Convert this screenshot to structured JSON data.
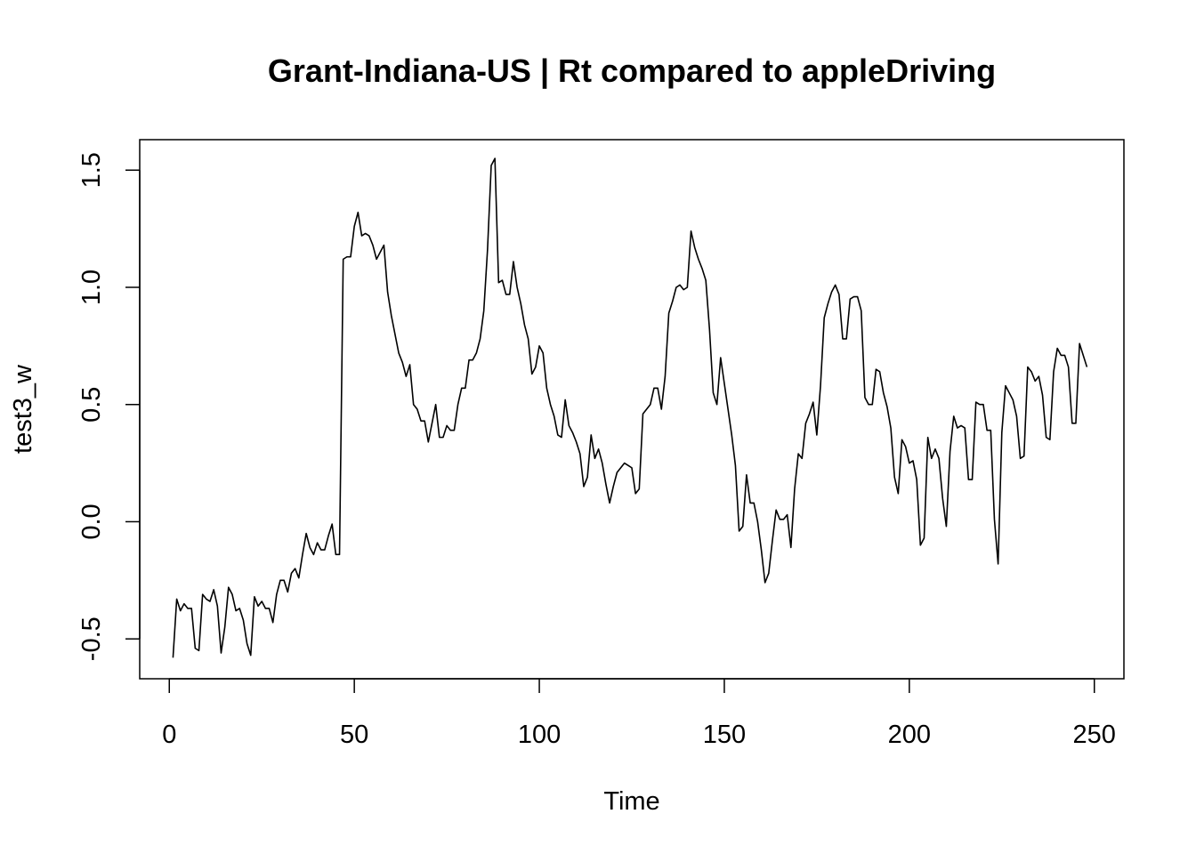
{
  "chart_data": {
    "type": "line",
    "title": "Grant-Indiana-US | Rt compared to appleDriving",
    "xlabel": "Time",
    "ylabel": "test3_w",
    "xlim": [
      -8,
      258
    ],
    "ylim": [
      -0.67,
      1.63
    ],
    "xticks": [
      0,
      50,
      100,
      150,
      200,
      250
    ],
    "yticks": [
      -0.5,
      0.0,
      0.5,
      1.0,
      1.5
    ],
    "xtick_labels": [
      "0",
      "50",
      "100",
      "150",
      "200",
      "250"
    ],
    "ytick_labels": [
      "-0.5",
      "0.0",
      "0.5",
      "1.0",
      "1.5"
    ],
    "grid": false,
    "line_color": "#000000",
    "series": [
      {
        "x": [
          1,
          2,
          3,
          4,
          5,
          6,
          7,
          8,
          9,
          10,
          11,
          12,
          13,
          14,
          15,
          16,
          17,
          18,
          19,
          20,
          21,
          22,
          23,
          24,
          25,
          26,
          27,
          28,
          29,
          30,
          31,
          32,
          33,
          34,
          35,
          36,
          37,
          38,
          39,
          40,
          41,
          42,
          43,
          44,
          45,
          46,
          47,
          48,
          49,
          50,
          51,
          52,
          53,
          54,
          55,
          56,
          57,
          58,
          59,
          60,
          61,
          62,
          63,
          64,
          65,
          66,
          67,
          68,
          69,
          70,
          71,
          72,
          73,
          74,
          75,
          76,
          77,
          78,
          79,
          80,
          81,
          82,
          83,
          84,
          85,
          86,
          87,
          88,
          89,
          90,
          91,
          92,
          93,
          94,
          95,
          96,
          97,
          98,
          99,
          100,
          101,
          102,
          103,
          104,
          105,
          106,
          107,
          108,
          109,
          110,
          111,
          112,
          113,
          114,
          115,
          116,
          117,
          118,
          119,
          120,
          121,
          122,
          123,
          124,
          125,
          126,
          127,
          128,
          129,
          130,
          131,
          132,
          133,
          134,
          135,
          136,
          137,
          138,
          139,
          140,
          141,
          142,
          143,
          144,
          145,
          146,
          147,
          148,
          149,
          150,
          151,
          152,
          153,
          154,
          155,
          156,
          157,
          158,
          159,
          160,
          161,
          162,
          163,
          164,
          165,
          166,
          167,
          168,
          169,
          170,
          171,
          172,
          173,
          174,
          175,
          176,
          177,
          178,
          179,
          180,
          181,
          182,
          183,
          184,
          185,
          186,
          187,
          188,
          189,
          190,
          191,
          192,
          193,
          194,
          195,
          196,
          197,
          198,
          199,
          200,
          201,
          202,
          203,
          204,
          205,
          206,
          207,
          208,
          209,
          210,
          211,
          212,
          213,
          214,
          215,
          216,
          217,
          218,
          219,
          220,
          221,
          222,
          223,
          224,
          225,
          226,
          227,
          228,
          229,
          230,
          231,
          232,
          233,
          234,
          235,
          236,
          237,
          238,
          239,
          240,
          241,
          242,
          243,
          244,
          245,
          246,
          247,
          248
        ],
        "values": [
          -0.58,
          -0.33,
          -0.38,
          -0.35,
          -0.37,
          -0.37,
          -0.54,
          -0.55,
          -0.31,
          -0.33,
          -0.34,
          -0.29,
          -0.36,
          -0.56,
          -0.45,
          -0.28,
          -0.31,
          -0.38,
          -0.37,
          -0.42,
          -0.52,
          -0.57,
          -0.32,
          -0.36,
          -0.34,
          -0.37,
          -0.37,
          -0.43,
          -0.31,
          -0.25,
          -0.25,
          -0.3,
          -0.22,
          -0.2,
          -0.24,
          -0.14,
          -0.05,
          -0.11,
          -0.14,
          -0.09,
          -0.12,
          -0.12,
          -0.06,
          -0.01,
          -0.14,
          -0.14,
          1.12,
          1.13,
          1.13,
          1.26,
          1.32,
          1.22,
          1.23,
          1.22,
          1.18,
          1.12,
          1.15,
          1.18,
          0.98,
          0.88,
          0.8,
          0.72,
          0.68,
          0.62,
          0.67,
          0.5,
          0.48,
          0.43,
          0.43,
          0.34,
          0.42,
          0.5,
          0.36,
          0.36,
          0.41,
          0.39,
          0.39,
          0.5,
          0.57,
          0.57,
          0.69,
          0.69,
          0.72,
          0.78,
          0.9,
          1.16,
          1.52,
          1.55,
          1.02,
          1.03,
          0.97,
          0.97,
          1.11,
          1.0,
          0.93,
          0.84,
          0.78,
          0.63,
          0.66,
          0.75,
          0.72,
          0.57,
          0.5,
          0.45,
          0.37,
          0.36,
          0.52,
          0.41,
          0.38,
          0.34,
          0.29,
          0.15,
          0.19,
          0.37,
          0.27,
          0.31,
          0.25,
          0.16,
          0.08,
          0.15,
          0.21,
          0.23,
          0.25,
          0.24,
          0.23,
          0.12,
          0.14,
          0.46,
          0.48,
          0.5,
          0.57,
          0.57,
          0.48,
          0.62,
          0.89,
          0.94,
          1.0,
          1.01,
          0.99,
          1.0,
          1.24,
          1.17,
          1.12,
          1.08,
          1.03,
          0.82,
          0.55,
          0.5,
          0.7,
          0.59,
          0.48,
          0.37,
          0.24,
          -0.04,
          -0.02,
          0.2,
          0.08,
          0.08,
          0.0,
          -0.12,
          -0.26,
          -0.22,
          -0.08,
          0.05,
          0.01,
          0.01,
          0.03,
          -0.11,
          0.14,
          0.29,
          0.27,
          0.42,
          0.46,
          0.51,
          0.37,
          0.58,
          0.87,
          0.93,
          0.98,
          1.01,
          0.97,
          0.78,
          0.78,
          0.95,
          0.96,
          0.96,
          0.9,
          0.53,
          0.5,
          0.5,
          0.65,
          0.64,
          0.55,
          0.49,
          0.4,
          0.19,
          0.12,
          0.35,
          0.32,
          0.25,
          0.26,
          0.18,
          -0.1,
          -0.07,
          0.36,
          0.27,
          0.31,
          0.27,
          0.1,
          -0.02,
          0.3,
          0.45,
          0.4,
          0.41,
          0.4,
          0.18,
          0.18,
          0.51,
          0.5,
          0.5,
          0.39,
          0.39,
          0.01,
          -0.18,
          0.38,
          0.58,
          0.55,
          0.52,
          0.45,
          0.27,
          0.28,
          0.66,
          0.64,
          0.6,
          0.62,
          0.54,
          0.36,
          0.35,
          0.64,
          0.74,
          0.71,
          0.71,
          0.66,
          0.42,
          0.42,
          0.76,
          0.71,
          0.66
        ]
      }
    ]
  }
}
